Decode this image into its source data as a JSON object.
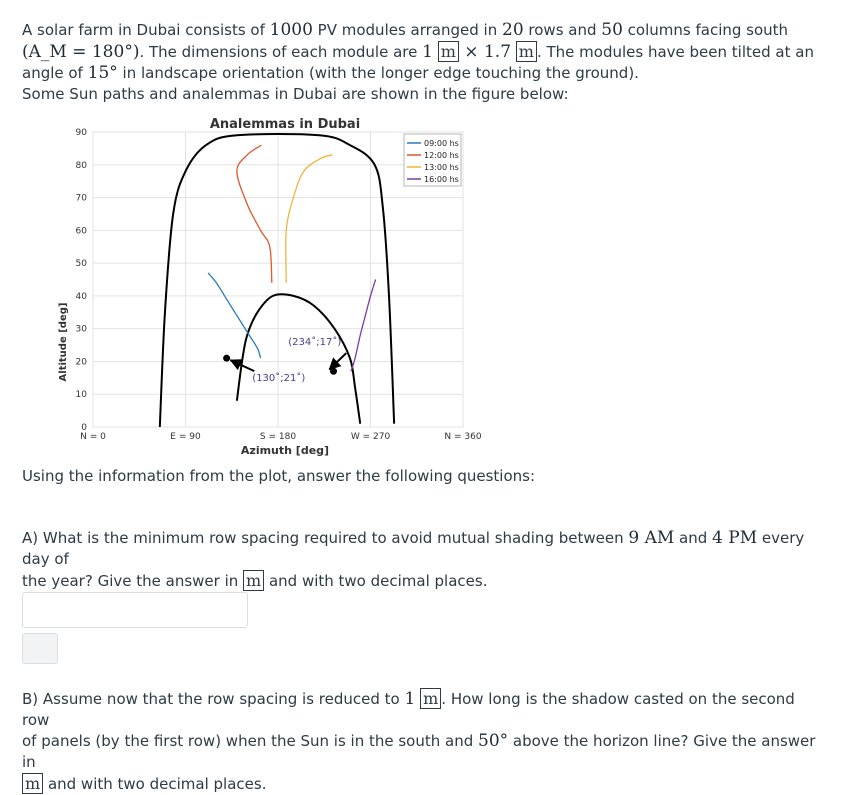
{
  "intro": {
    "p1": "A solar farm in Dubai consists of ",
    "n_modules": "1000",
    "p2": " PV modules arranged in ",
    "n_rows": "20",
    "p3": " rows and ",
    "n_cols": "50",
    "p4": " columns facing south",
    "am_math": "(A_M = 180°)",
    "p5": ". The dimensions of each module are ",
    "dim1": "1",
    "unit_m": "m",
    "times": " × ",
    "dim2": "1.7",
    "p6": ". The modules have been tilted at an",
    "p7": "angle of ",
    "tilt": "15°",
    "p8": " in landscape orientation (with the longer edge touching the ground).",
    "p9": "Some Sun paths and analemmas in Dubai are shown in the figure below:"
  },
  "instruction": "Using the information from the plot, answer the following questions:",
  "question_a": {
    "label": "A)",
    "t1": " What is the minimum row spacing required to avoid mutual shading between ",
    "start": "9 AM",
    "and": " and ",
    "end": "4 PM",
    "t2": " every day of",
    "t3": "the year? Give the answer in ",
    "unit": "m",
    "t4": " and with two decimal places."
  },
  "question_b": {
    "label": "B)",
    "t1": " Assume now that the row spacing is reduced to ",
    "spacing": "1",
    "unit": "m",
    "t2": ". How long is the shadow casted on the second row",
    "t3": "of panels (by the first row) when the Sun is in the south and ",
    "angle": "50°",
    "t4": " above the horizon line? Give the answer in",
    "t5": " and with two decimal places."
  },
  "chart_data": {
    "type": "line",
    "title": "Analemmas in Dubai",
    "xlabel": "Azimuth [deg]",
    "ylabel": "Altitude [deg]",
    "xlim": [
      0,
      360
    ],
    "ylim": [
      0,
      90
    ],
    "x_ticks": [
      {
        "value": 0,
        "label": "N = 0"
      },
      {
        "value": 90,
        "label": "E = 90"
      },
      {
        "value": 180,
        "label": "S = 180"
      },
      {
        "value": 270,
        "label": "W = 270"
      },
      {
        "value": 360,
        "label": "N = 360"
      }
    ],
    "y_ticks": [
      0,
      10,
      20,
      30,
      40,
      50,
      60,
      70,
      80,
      90
    ],
    "grid": true,
    "legend_position": "top-right",
    "colors": {
      "sun_path": "#000000",
      "h09": "#2b7bbd",
      "h12": "#e0562e",
      "h13": "#f0b43c",
      "h16": "#7a3c99"
    },
    "series": [
      {
        "name": "09:00 hs",
        "color": "#2b7bbd",
        "x": [
          112,
          120,
          130,
          140,
          150,
          160,
          163
        ],
        "y": [
          47,
          44,
          39,
          34,
          29,
          24,
          21
        ]
      },
      {
        "name": "12:00 hs",
        "color": "#e0562e",
        "x": [
          164,
          150,
          140,
          150,
          163,
          172,
          174
        ],
        "y": [
          86,
          83,
          78,
          68,
          60,
          55,
          44
        ]
      },
      {
        "name": "13:00 hs",
        "color": "#f0b43c",
        "x": [
          233,
          222,
          205,
          195,
          188,
          188
        ],
        "y": [
          83,
          82,
          78,
          70,
          60,
          44
        ]
      },
      {
        "name": "16:00 hs",
        "color": "#7a3c99",
        "x": [
          251,
          255,
          260,
          265,
          270,
          275
        ],
        "y": [
          17,
          21,
          28,
          34,
          40,
          45
        ]
      }
    ],
    "sun_paths": [
      {
        "x": [
          140,
          145,
          150,
          160,
          175,
          195,
          215,
          235,
          250,
          255,
          260
        ],
        "y": [
          8,
          20,
          28,
          35,
          40,
          40,
          37,
          30,
          21,
          12,
          1
        ]
      },
      {
        "x": [
          65,
          70,
          78,
          90,
          110,
          140,
          220,
          250,
          274,
          282,
          288,
          293
        ],
        "y": [
          0,
          35,
          65,
          78,
          86,
          89,
          89,
          86,
          80,
          67,
          40,
          1
        ]
      }
    ],
    "points": [
      {
        "x": 130,
        "y": 21
      },
      {
        "x": 234,
        "y": 17
      }
    ],
    "annotations": [
      {
        "text": "(234˚;17˚)",
        "x": 190,
        "y": 25
      },
      {
        "text": "(130˚;21˚)",
        "x": 155,
        "y": 14
      }
    ]
  }
}
